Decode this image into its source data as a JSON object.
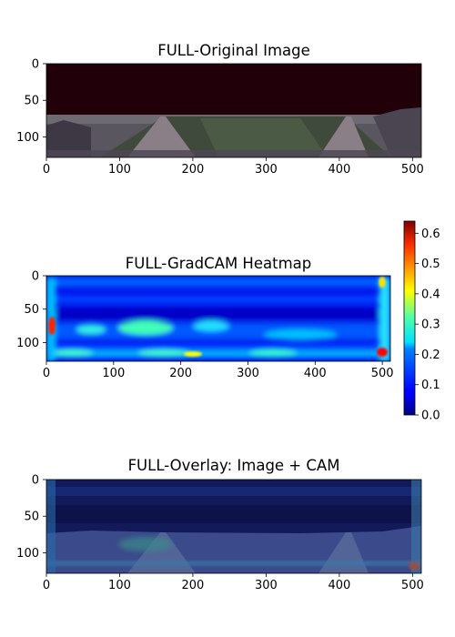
{
  "chart_data": [
    {
      "type": "heatmap",
      "title": "FULL-Original Image",
      "content": "photo",
      "x_ticks": [
        0,
        100,
        200,
        300,
        400,
        500
      ],
      "y_ticks": [
        0,
        50,
        100
      ],
      "xlim": [
        0,
        512
      ],
      "ylim": [
        128,
        0
      ]
    },
    {
      "type": "heatmap",
      "title": "FULL-GradCAM Heatmap",
      "content": "cam",
      "colormap": "jet",
      "x_ticks": [
        0,
        100,
        200,
        300,
        400,
        500
      ],
      "y_ticks": [
        0,
        50,
        100
      ],
      "xlim": [
        0,
        512
      ],
      "ylim": [
        128,
        0
      ],
      "colorbar": {
        "ticks": [
          "0.0",
          "0.1",
          "0.2",
          "0.3",
          "0.4",
          "0.5",
          "0.6"
        ],
        "range": [
          0.0,
          0.64
        ]
      }
    },
    {
      "type": "heatmap",
      "title": "FULL-Overlay: Image + CAM",
      "content": "overlay",
      "x_ticks": [
        0,
        100,
        200,
        300,
        400,
        500
      ],
      "y_ticks": [
        0,
        50,
        100
      ],
      "xlim": [
        0,
        512
      ],
      "ylim": [
        128,
        0
      ]
    }
  ]
}
